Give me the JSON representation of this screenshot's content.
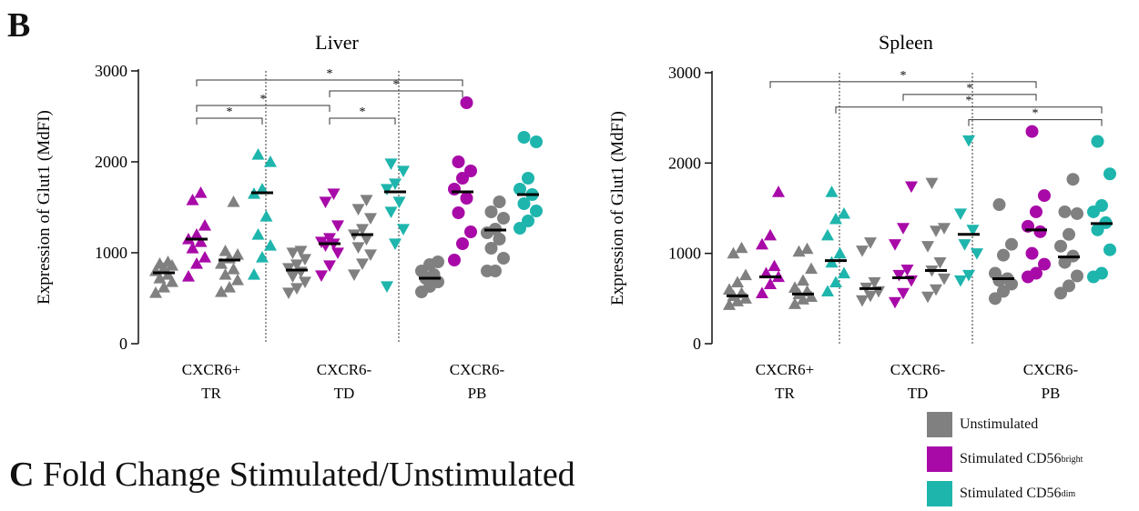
{
  "panel_b_letter": "B",
  "panel_c_letter": "C",
  "panel_c_title": "Fold Change Stimulated/Unstimulated",
  "colors": {
    "Unstimulated": "#808080",
    "CD56bright": "#a80aa8",
    "CD56dim": "#1eb5ad"
  },
  "legend": [
    {
      "label": "Unstimulated",
      "sup": "",
      "color": "#808080"
    },
    {
      "label": "Stimulated CD56",
      "sup": "bright",
      "color": "#a80aa8"
    },
    {
      "label": "Stimulated CD56",
      "sup": "dim",
      "color": "#1eb5ad"
    }
  ],
  "chart_data": [
    {
      "type": "scatter",
      "title": "Liver",
      "ylabel": "Expression of Glut1 (MdFI)",
      "ylim": [
        0,
        3000
      ],
      "yticks": [
        "0",
        "1000",
        "2000",
        "3000"
      ],
      "groups": [
        {
          "line1": "CXCR6+",
          "line2": "TR",
          "shape": "triangle-up"
        },
        {
          "line1": "CXCR6-",
          "line2": "TD",
          "shape": "triangle-down"
        },
        {
          "line1": "CXCR6-",
          "line2": "PB",
          "shape": "circle"
        }
      ],
      "series": [
        {
          "name": "Unstimulated",
          "color": "#808080",
          "median": [
            780,
            920,
            810,
            1200,
            720,
            1250
          ],
          "points": [
            [
              560,
              620,
              680,
              720,
              760,
              800,
              830,
              860,
              880,
              900
            ],
            [
              570,
              620,
              700,
              760,
              820,
              880,
              940,
              980,
              1020,
              1560
            ],
            [
              560,
              610,
              680,
              740,
              790,
              830,
              870,
              930,
              1000,
              1020
            ],
            [
              760,
              880,
              980,
              1060,
              1150,
              1200,
              1260,
              1380,
              1480,
              1580
            ],
            [
              570,
              630,
              680,
              720,
              760,
              800,
              870,
              900
            ],
            [
              800,
              800,
              940,
              1050,
              1150,
              1220,
              1260,
              1380,
              1450,
              1560
            ]
          ]
        },
        {
          "name": "Stimulated CD56bright",
          "color": "#a80aa8",
          "median": [
            1150,
            1100,
            1670
          ],
          "points": [
            [
              740,
              880,
              950,
              1050,
              1120,
              1150,
              1200,
              1300,
              1580,
              1660
            ],
            [
              750,
              860,
              1000,
              1080,
              1100,
              1120,
              1160,
              1300,
              1560,
              1650
            ],
            [
              920,
              1100,
              1230,
              1440,
              1600,
              1700,
              1820,
              1900,
              2000,
              2650
            ]
          ]
        },
        {
          "name": "Stimulated CD56dim",
          "color": "#1eb5ad",
          "median": [
            1660,
            1670,
            1640
          ],
          "points": [
            [
              760,
              950,
              1080,
              1200,
              1400,
              1650,
              1700,
              2000,
              2080
            ],
            [
              630,
              1100,
              1260,
              1450,
              1560,
              1700,
              1760,
              1900,
              1980
            ],
            [
              1270,
              1350,
              1460,
              1540,
              1640,
              1700,
              1820,
              2220,
              2270
            ]
          ]
        }
      ],
      "annotations": [
        {
          "text": "*",
          "from": [
            0,
            1
          ],
          "to": [
            2,
            1
          ],
          "y": 2900
        },
        {
          "text": "*",
          "from": [
            1,
            1
          ],
          "to": [
            2,
            1
          ],
          "y": 2780
        },
        {
          "text": "*",
          "from": [
            0,
            1
          ],
          "to": [
            1,
            1
          ],
          "y": 2620
        },
        {
          "text": "*",
          "from": [
            0,
            1
          ],
          "to": [
            0,
            2
          ],
          "y": 2480
        },
        {
          "text": "*",
          "from": [
            1,
            1
          ],
          "to": [
            1,
            2
          ],
          "y": 2480
        }
      ]
    },
    {
      "type": "scatter",
      "title": "Spleen",
      "ylabel": "Expression of Glut1 (MdFI)",
      "ylim": [
        0,
        3000
      ],
      "yticks": [
        "0",
        "1000",
        "2000",
        "3000"
      ],
      "groups": [
        {
          "line1": "CXCR6+",
          "line2": "TR",
          "shape": "triangle-up"
        },
        {
          "line1": "CXCR6-",
          "line2": "TD",
          "shape": "triangle-down"
        },
        {
          "line1": "CXCR6-",
          "line2": "PB",
          "shape": "circle"
        }
      ],
      "series": [
        {
          "name": "Unstimulated",
          "color": "#808080",
          "median": [
            530,
            550,
            610,
            810,
            720,
            960
          ],
          "points": [
            [
              430,
              470,
              500,
              530,
              560,
              600,
              680,
              760,
              1000,
              1060
            ],
            [
              440,
              490,
              520,
              550,
              580,
              620,
              700,
              830,
              1020,
              1050
            ],
            [
              480,
              530,
              580,
              620,
              680,
              1030,
              1120
            ],
            [
              520,
              600,
              720,
              810,
              900,
              1080,
              1250,
              1280,
              1780
            ],
            [
              500,
              580,
              660,
              700,
              720,
              780,
              980,
              1100,
              1540
            ],
            [
              560,
              640,
              750,
              900,
              970,
              1080,
              1210,
              1440,
              1460,
              1820
            ]
          ]
        },
        {
          "name": "Stimulated CD56bright",
          "color": "#a80aa8",
          "median": [
            740,
            730,
            1260
          ],
          "points": [
            [
              560,
              660,
              740,
              780,
              860,
              1100,
              1200,
              1680
            ],
            [
              460,
              560,
              700,
              760,
              820,
              1100,
              1280,
              1740
            ],
            [
              740,
              780,
              880,
              1000,
              1240,
              1300,
              1460,
              1640,
              2350
            ]
          ]
        },
        {
          "name": "Stimulated CD56dim",
          "color": "#1eb5ad",
          "median": [
            920,
            1210,
            1330
          ],
          "points": [
            [
              580,
              680,
              780,
              900,
              1000,
              1200,
              1380,
              1440,
              1680
            ],
            [
              700,
              760,
              1000,
              1100,
              1260,
              1440,
              2250
            ],
            [
              740,
              780,
              1040,
              1260,
              1340,
              1460,
              1530,
              1880,
              2240
            ]
          ]
        }
      ],
      "annotations": [
        {
          "text": "*",
          "from": [
            0,
            1
          ],
          "to": [
            2,
            1
          ],
          "y": 2900
        },
        {
          "text": "*",
          "from": [
            1,
            1
          ],
          "to": [
            2,
            1
          ],
          "y": 2760
        },
        {
          "text": "*",
          "from": [
            0,
            2
          ],
          "to": [
            2,
            2
          ],
          "y": 2620
        },
        {
          "text": "*",
          "from": [
            1,
            2
          ],
          "to": [
            2,
            2
          ],
          "y": 2480
        }
      ]
    }
  ]
}
